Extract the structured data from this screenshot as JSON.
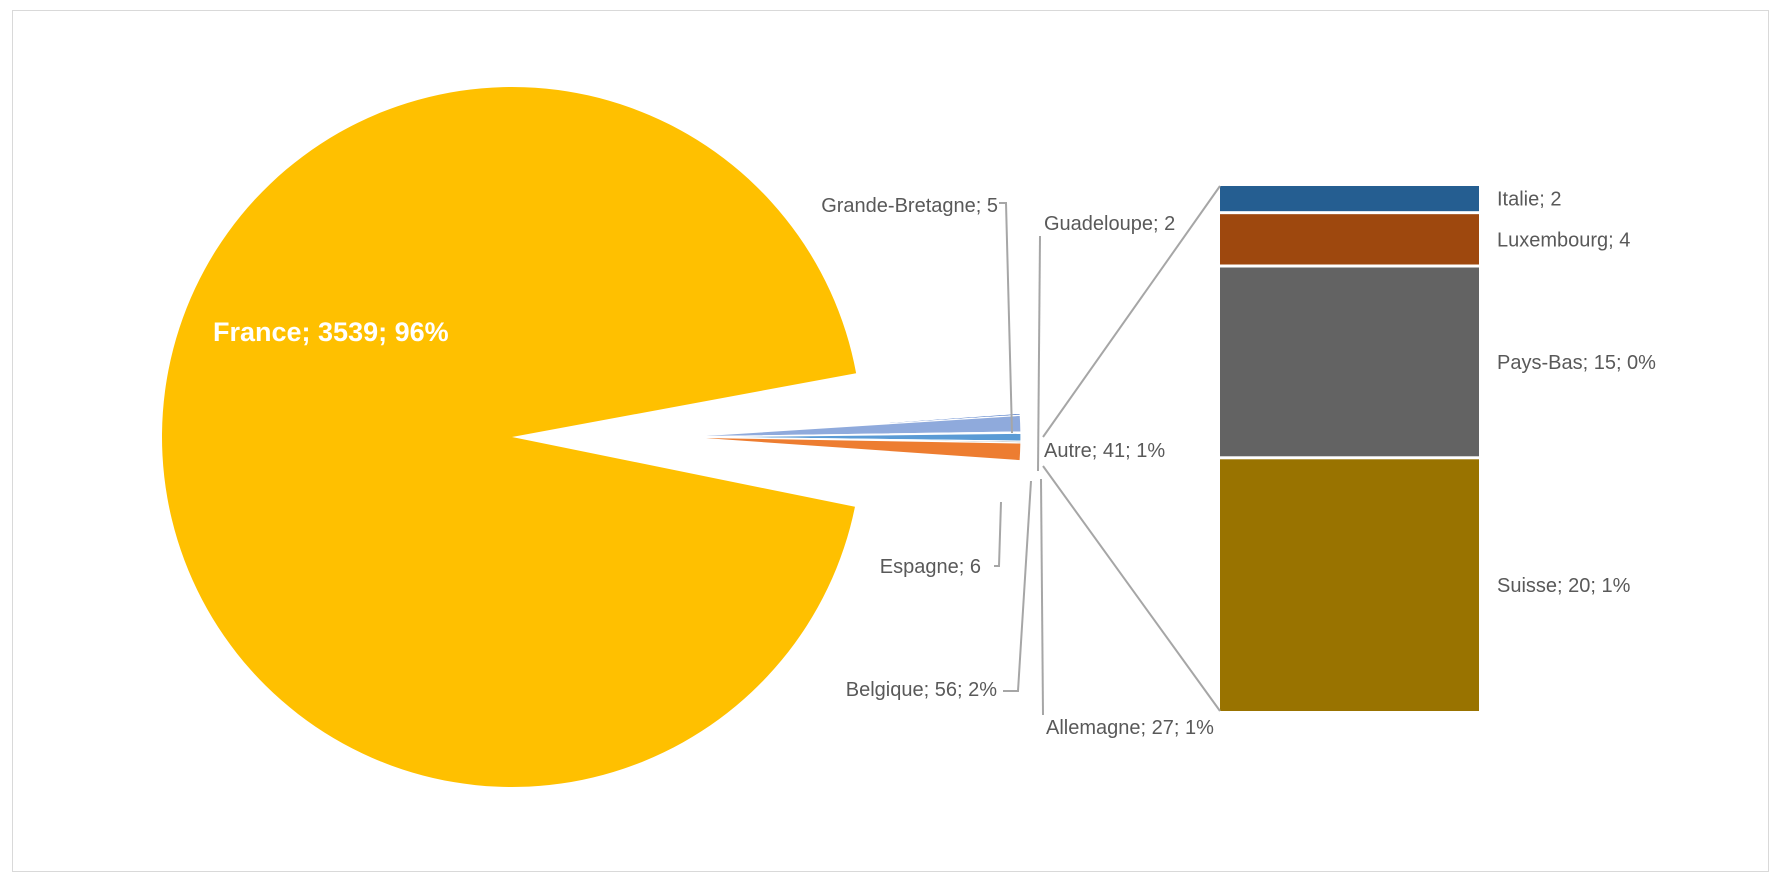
{
  "chart_data": {
    "type": "pie",
    "subtype": "bar-of-pie",
    "title": "",
    "pie": [
      {
        "name": "France",
        "value": 3539,
        "label": "France; 3539; 96%",
        "color": "#ffc000",
        "exploded": false
      },
      {
        "name": "Grande-Bretagne",
        "value": 5,
        "label": "Grande-Bretagne; 5",
        "color": "#4472c4",
        "exploded": true
      },
      {
        "name": "Espagne",
        "value": 6,
        "label": "Espagne; 6",
        "color": "#a5a5a5",
        "exploded": true
      },
      {
        "name": "Guadeloupe",
        "value": 2,
        "label": "Guadeloupe; 2",
        "color": "#5b9bd5",
        "exploded": true
      },
      {
        "name": "Autre",
        "value": 41,
        "label": "Autre; 41; 1%",
        "color": "#8faadc",
        "exploded": true
      },
      {
        "name": "Allemagne",
        "value": 27,
        "label": "Allemagne; 27; 1%",
        "color": "#5b9bd5",
        "exploded": true
      },
      {
        "name": "Belgique",
        "value": 56,
        "label": "Belgique; 56; 2%",
        "color": "#ed7d31",
        "exploded": true
      }
    ],
    "bar": [
      {
        "name": "Italie",
        "value": 2,
        "label": "Italie; 2",
        "color": "#255e91"
      },
      {
        "name": "Luxembourg",
        "value": 4,
        "label": "Luxembourg; 4",
        "color": "#9e480e"
      },
      {
        "name": "Pays-Bas",
        "value": 15,
        "label": "Pays-Bas; 15; 0%",
        "color": "#636363"
      },
      {
        "name": "Suisse",
        "value": 20,
        "label": "Suisse; 20; 1%",
        "color": "#997300"
      }
    ]
  }
}
